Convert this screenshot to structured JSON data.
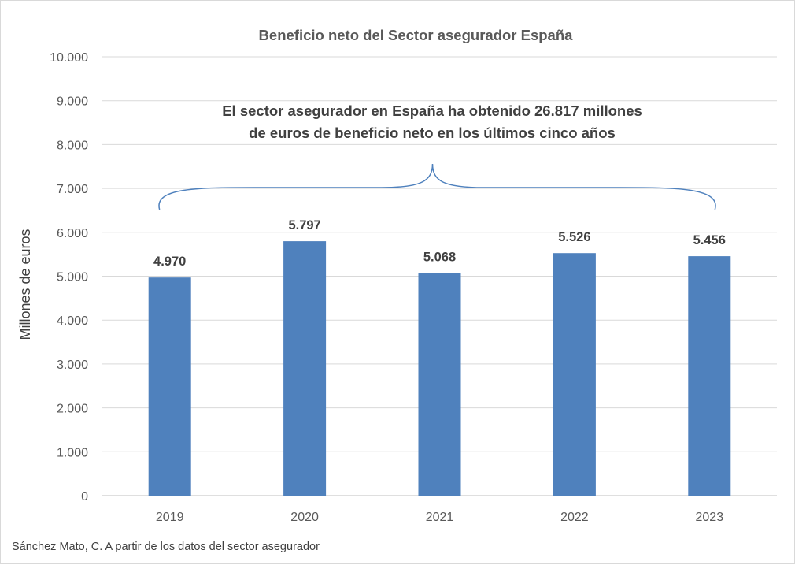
{
  "chart_data": {
    "type": "bar",
    "title": "Beneficio neto del Sector asegurador  España",
    "categories": [
      "2019",
      "2020",
      "2021",
      "2022",
      "2023"
    ],
    "values": [
      4970,
      5797,
      5068,
      5526,
      5456
    ],
    "value_labels": [
      "4.970",
      "5.797",
      "5.068",
      "5.526",
      "5.456"
    ],
    "ylabel": "Millones de euros",
    "xlabel": "",
    "ylim": [
      0,
      10000
    ],
    "yticks": [
      0,
      1000,
      2000,
      3000,
      4000,
      5000,
      6000,
      7000,
      8000,
      9000,
      10000
    ],
    "ytick_labels": [
      "0",
      "1.000",
      "2.000",
      "3.000",
      "4.000",
      "5.000",
      "6.000",
      "7.000",
      "8.000",
      "9.000",
      "10.000"
    ],
    "grid": true,
    "bar_color": "#4f81bd",
    "annotation": {
      "lines": [
        "El sector asegurador en España ha obtenido 26.817 millones",
        "de euros de beneficio neto en los últimos cinco años"
      ],
      "spans": [
        "2019",
        "2023"
      ]
    },
    "source": "Sánchez Mato, C.  A partir de los datos del sector asegurador"
  },
  "colors": {
    "bar": "#4f81bd",
    "grid": "#d9d9d9",
    "text": "#404040",
    "muted_text": "#595959"
  }
}
